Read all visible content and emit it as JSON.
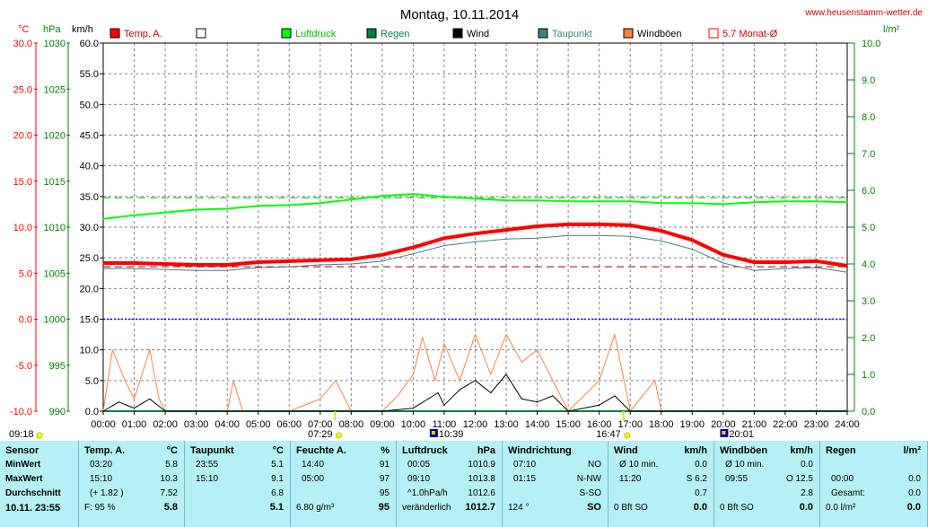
{
  "page": {
    "title": "Montag, 10.11.2014",
    "site": "www.heusenstamm-wetter.de",
    "unit_labels": {
      "temp": "°C",
      "press": "hPa",
      "wind": "km/h",
      "rain": "l/m²"
    }
  },
  "legend": [
    {
      "label": "Temp. A.",
      "color": "#ff0000",
      "name": "legend-temp"
    },
    {
      "label": "",
      "color": "#ffffff",
      "name": "legend-empty"
    },
    {
      "label": "Luftdruck",
      "color": "#00ff00",
      "name": "legend-pressure"
    },
    {
      "label": "Regen",
      "color": "#008040",
      "name": "legend-rain"
    },
    {
      "label": "Wind",
      "color": "#000000",
      "name": "legend-wind"
    },
    {
      "label": "Taupunkt",
      "color": "#408080",
      "name": "legend-dewpoint"
    },
    {
      "label": "Windböen",
      "color": "#ff8040",
      "name": "legend-gusts"
    },
    {
      "label": "5.7 Monat-Ø",
      "color": "#ff0000",
      "name": "legend-month-avg"
    }
  ],
  "chart_data": {
    "type": "line",
    "title": "Montag, 10.11.2014",
    "x_ticks": [
      "00:00",
      "01:00",
      "02:00",
      "03:00",
      "04:00",
      "05:00",
      "06:00",
      "07:00",
      "08:00",
      "09:00",
      "10:00",
      "11:00",
      "12:00",
      "13:00",
      "14:00",
      "15:00",
      "16:00",
      "17:00",
      "18:00",
      "19:00",
      "20:00",
      "21:00",
      "22:00",
      "23:00",
      "24:00"
    ],
    "axes": {
      "temp": {
        "label": "°C",
        "min": -10,
        "max": 30,
        "ticks": [
          "30.0",
          "25.0",
          "20.0",
          "15.0",
          "10.0",
          "5.0",
          "0.0",
          "-5.0",
          "-10.0"
        ],
        "color": "#ff0000"
      },
      "pressure": {
        "label": "hPa",
        "min": 990,
        "max": 1030,
        "ticks": [
          "1030",
          "1025",
          "1020",
          "1015",
          "1010",
          "1005",
          "1000",
          "995",
          "990"
        ],
        "color": "#008000"
      },
      "wind": {
        "label": "km/h",
        "min": 0,
        "max": 60,
        "ticks": [
          "60.0",
          "55.0",
          "50.0",
          "45.0",
          "40.0",
          "35.0",
          "30.0",
          "25.0",
          "20.0",
          "15.0",
          "10.0",
          "5.0",
          "0.0"
        ],
        "color": "#000000"
      },
      "rain": {
        "label": "l/m²",
        "min": 0,
        "max": 10,
        "ticks": [
          "10.0",
          "9.0",
          "8.0",
          "7.0",
          "6.0",
          "5.0",
          "4.0",
          "3.0",
          "2.0",
          "1.0",
          "0.0"
        ],
        "color": "#008000"
      }
    },
    "grid": true,
    "reference_lines": {
      "pressure_avg_hpa": 1013.2,
      "month_avg_temp": 5.7,
      "freezing_temp": 0.0
    },
    "series": [
      {
        "name": "Temp. A.",
        "axis": "temp",
        "color": "#ff0000",
        "points": [
          [
            0,
            6.1
          ],
          [
            1,
            6.1
          ],
          [
            2,
            6.0
          ],
          [
            3,
            5.9
          ],
          [
            4,
            5.9
          ],
          [
            5,
            6.2
          ],
          [
            6,
            6.3
          ],
          [
            7,
            6.4
          ],
          [
            8,
            6.5
          ],
          [
            9,
            7.0
          ],
          [
            10,
            7.8
          ],
          [
            11,
            8.8
          ],
          [
            12,
            9.3
          ],
          [
            13,
            9.7
          ],
          [
            14,
            10.1
          ],
          [
            15,
            10.3
          ],
          [
            16,
            10.3
          ],
          [
            17,
            10.2
          ],
          [
            18,
            9.6
          ],
          [
            19,
            8.6
          ],
          [
            20,
            7.0
          ],
          [
            21,
            6.2
          ],
          [
            22,
            6.2
          ],
          [
            23,
            6.3
          ],
          [
            24,
            5.8
          ]
        ]
      },
      {
        "name": "Taupunkt",
        "axis": "temp",
        "color": "#408080",
        "points": [
          [
            0,
            5.5
          ],
          [
            1,
            5.5
          ],
          [
            2,
            5.4
          ],
          [
            3,
            5.3
          ],
          [
            4,
            5.3
          ],
          [
            5,
            5.6
          ],
          [
            6,
            5.7
          ],
          [
            7,
            5.9
          ],
          [
            8,
            6.0
          ],
          [
            9,
            6.3
          ],
          [
            10,
            7.1
          ],
          [
            11,
            8.0
          ],
          [
            12,
            8.4
          ],
          [
            13,
            8.7
          ],
          [
            14,
            8.8
          ],
          [
            15,
            9.1
          ],
          [
            16,
            9.1
          ],
          [
            17,
            9.0
          ],
          [
            18,
            8.5
          ],
          [
            19,
            7.6
          ],
          [
            20,
            6.1
          ],
          [
            21,
            5.3
          ],
          [
            22,
            5.5
          ],
          [
            23,
            5.6
          ],
          [
            24,
            5.1
          ]
        ]
      },
      {
        "name": "Luftdruck",
        "axis": "pressure",
        "color": "#00ff00",
        "points": [
          [
            0,
            1010.9
          ],
          [
            1,
            1011.3
          ],
          [
            2,
            1011.6
          ],
          [
            3,
            1011.9
          ],
          [
            4,
            1012.0
          ],
          [
            5,
            1012.3
          ],
          [
            6,
            1012.4
          ],
          [
            7,
            1012.6
          ],
          [
            8,
            1013.0
          ],
          [
            9,
            1013.4
          ],
          [
            10,
            1013.6
          ],
          [
            11,
            1013.3
          ],
          [
            12,
            1013.1
          ],
          [
            13,
            1012.9
          ],
          [
            14,
            1012.9
          ],
          [
            15,
            1012.8
          ],
          [
            16,
            1012.8
          ],
          [
            17,
            1012.8
          ],
          [
            18,
            1012.6
          ],
          [
            19,
            1012.6
          ],
          [
            20,
            1012.5
          ],
          [
            21,
            1012.7
          ],
          [
            22,
            1012.8
          ],
          [
            23,
            1012.8
          ],
          [
            24,
            1012.7
          ]
        ]
      },
      {
        "name": "Wind",
        "axis": "wind",
        "color": "#000000",
        "points": [
          [
            0,
            0.0
          ],
          [
            0.5,
            1.5
          ],
          [
            1,
            0.5
          ],
          [
            1.5,
            2.0
          ],
          [
            2,
            0.0
          ],
          [
            3,
            0.0
          ],
          [
            4,
            0.0
          ],
          [
            5,
            0.0
          ],
          [
            6,
            0.0
          ],
          [
            7,
            0.0
          ],
          [
            8,
            0.0
          ],
          [
            9,
            0.0
          ],
          [
            10,
            0.5
          ],
          [
            10.8,
            3.0
          ],
          [
            11,
            1.0
          ],
          [
            11.5,
            3.5
          ],
          [
            12,
            5.0
          ],
          [
            12.5,
            3.0
          ],
          [
            13,
            6.0
          ],
          [
            13.5,
            2.0
          ],
          [
            14,
            1.5
          ],
          [
            14.5,
            2.5
          ],
          [
            15,
            0.0
          ],
          [
            16,
            1.0
          ],
          [
            16.5,
            2.5
          ],
          [
            17,
            0.0
          ],
          [
            18,
            0.0
          ],
          [
            19,
            0.0
          ],
          [
            20,
            0.0
          ],
          [
            21,
            0.0
          ],
          [
            22,
            0.0
          ],
          [
            23,
            0.0
          ],
          [
            24,
            0.0
          ]
        ]
      },
      {
        "name": "Windböen",
        "axis": "wind",
        "color": "#ff8040",
        "points": [
          [
            0,
            0.0
          ],
          [
            0.3,
            10.0
          ],
          [
            0.7,
            5.0
          ],
          [
            1,
            2.0
          ],
          [
            1.5,
            10.0
          ],
          [
            1.8,
            2.0
          ],
          [
            2,
            0.0
          ],
          [
            4,
            0.0
          ],
          [
            4.2,
            5.0
          ],
          [
            4.5,
            0.0
          ],
          [
            6,
            0.0
          ],
          [
            7,
            2.0
          ],
          [
            7.5,
            5.0
          ],
          [
            8,
            0.0
          ],
          [
            9,
            0.0
          ],
          [
            9.5,
            2.5
          ],
          [
            10,
            6.0
          ],
          [
            10.3,
            12.0
          ],
          [
            10.7,
            5.0
          ],
          [
            11,
            11.0
          ],
          [
            11.5,
            5.0
          ],
          [
            12,
            12.5
          ],
          [
            12.5,
            6.0
          ],
          [
            13,
            12.5
          ],
          [
            13.5,
            8.0
          ],
          [
            14,
            10.0
          ],
          [
            14.5,
            5.0
          ],
          [
            15,
            0.0
          ],
          [
            16,
            5.0
          ],
          [
            16.5,
            12.5
          ],
          [
            17,
            0.0
          ],
          [
            17.8,
            5.0
          ],
          [
            18,
            0.0
          ],
          [
            19,
            0.0
          ],
          [
            24,
            0.0
          ]
        ]
      },
      {
        "name": "Regen",
        "axis": "rain",
        "color": "#008040",
        "points": [
          [
            0,
            0.0
          ],
          [
            24,
            0.0
          ]
        ]
      }
    ],
    "markers": [
      {
        "time": "07:29",
        "type": "sunrise"
      },
      {
        "time": "10:39",
        "type": "max"
      },
      {
        "time": "16:47",
        "type": "sunset"
      },
      {
        "time": "20:01",
        "type": "min"
      }
    ],
    "below_axis_labels": {
      "left": "09:18",
      "sunrise": "07:29",
      "max": "10:39",
      "sunset": "16:47",
      "min": "20:01"
    }
  },
  "table": {
    "sensor": {
      "title": "Sensor",
      "rows": [
        "MinWert",
        "MaxWert",
        "Durchschnitt"
      ],
      "footer": "10.11. 23:55"
    },
    "temp": {
      "title": "Temp. A.",
      "unit": "°C",
      "rows": [
        [
          "03:20",
          "5.8"
        ],
        [
          "15:10",
          "10.3"
        ],
        [
          "(+ 1.82 )",
          "7.52"
        ]
      ],
      "footer": [
        "F: 95 %",
        "5.8"
      ]
    },
    "dew": {
      "title": "Taupunkt",
      "unit": "°C",
      "rows": [
        [
          "23:55",
          "5.1"
        ],
        [
          "15:10",
          "9.1"
        ],
        [
          "",
          "6.8"
        ]
      ],
      "footer": [
        "",
        "5.1"
      ]
    },
    "humidity": {
      "title": "Feuchte A.",
      "unit": "%",
      "rows": [
        [
          "14:40",
          "91"
        ],
        [
          "05:00",
          "97"
        ],
        [
          "",
          "95"
        ]
      ],
      "footer": [
        "6.80 g/m³",
        "95"
      ]
    },
    "pressure": {
      "title": "Luftdruck",
      "unit": "hPa",
      "rows": [
        [
          "00:05",
          "1010.9"
        ],
        [
          "09:10",
          "1013.8"
        ],
        [
          "^1.0hPa/h",
          "1012.6"
        ]
      ],
      "footer": [
        "veränderlich",
        "1012.7"
      ]
    },
    "winddir": {
      "title": "Windrichtung",
      "rows": [
        [
          "07:10",
          "NO"
        ],
        [
          "01:15",
          "N-NW"
        ],
        [
          "",
          "S-SO"
        ]
      ],
      "footer": [
        "124 °",
        "SO"
      ]
    },
    "wind": {
      "title": "Wind",
      "unit": "km/h",
      "rows": [
        [
          "Ø 10 min.",
          "0.0"
        ],
        [
          "11:20",
          "S 6.2"
        ],
        [
          "",
          "0.7"
        ]
      ],
      "footer": [
        "0 Bft SO",
        "0.0"
      ]
    },
    "gusts": {
      "title": "Windböen",
      "unit": "km/h",
      "rows": [
        [
          "Ø 10 min.",
          "0.0"
        ],
        [
          "09:55",
          "O 12.5"
        ],
        [
          "",
          "2.8"
        ]
      ],
      "footer": [
        "0 Bft SO",
        "0.0"
      ]
    },
    "rain": {
      "title": "Regen",
      "unit": "l/m²",
      "rows": [
        [
          "",
          ""
        ],
        [
          "00:00",
          "0.0"
        ],
        [
          "Gesamt:",
          "0.0"
        ]
      ],
      "footer": [
        "0.0 l/m²",
        "0.0"
      ]
    }
  }
}
